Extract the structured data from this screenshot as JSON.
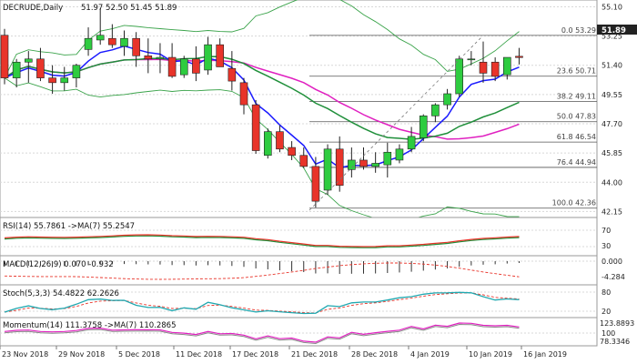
{
  "header": {
    "symbol": "DECRUDE,Daily",
    "ohlc": "51.97 52.50 51.45 51.89"
  },
  "last_price": "51.89",
  "fib_levels": [
    {
      "label": "0.0 53.29",
      "value": 53.29
    },
    {
      "label": "23.6 50.71",
      "value": 50.71
    },
    {
      "label": "38.2 49.11",
      "value": 49.11
    },
    {
      "label": "50.0 47.83",
      "value": 47.83
    },
    {
      "label": "61.8 46.54",
      "value": 46.54
    },
    {
      "label": "76.4 44.94",
      "value": 44.94
    },
    {
      "label": "100.0 42.36",
      "value": 42.36
    }
  ],
  "x_labels": [
    "23 Nov 2018",
    "29 Nov 2018",
    "5 Dec 2018",
    "11 Dec 2018",
    "17 Dec 2018",
    "21 Dec 2018",
    "28 Dec 2018",
    "4 Jan 2019",
    "10 Jan 2019",
    "16 Jan 2019"
  ],
  "chart_data": [
    {
      "type": "candlestick",
      "title": "DECRUDE,Daily",
      "ylim": [
        42.0,
        55.3
      ],
      "y_ticks": [
        55.1,
        53.25,
        51.4,
        49.55,
        47.7,
        45.85,
        44.0,
        42.15
      ],
      "colors": {
        "up": "#2ecc40",
        "down": "#e8342a",
        "ma_fast": "#1a1aff",
        "ma_mid": "#e020c0",
        "ma_slow": "#1f8f3a",
        "bands": "#3aa34a"
      },
      "candles": [
        [
          53.3,
          53.7,
          50.2,
          50.6
        ],
        [
          50.6,
          51.8,
          50.0,
          51.6
        ],
        [
          51.6,
          52.3,
          50.3,
          51.8
        ],
        [
          51.8,
          52.5,
          50.4,
          50.6
        ],
        [
          50.6,
          51.4,
          49.6,
          50.3
        ],
        [
          50.3,
          51.3,
          49.8,
          50.6
        ],
        [
          50.6,
          51.5,
          50.0,
          51.4
        ],
        [
          52.4,
          53.8,
          52.0,
          53.1
        ],
        [
          53.0,
          55.0,
          52.7,
          53.3
        ],
        [
          53.1,
          54.0,
          52.5,
          52.7
        ],
        [
          52.6,
          53.6,
          52.0,
          53.1
        ],
        [
          53.1,
          53.5,
          51.3,
          52.0
        ],
        [
          52.0,
          53.1,
          50.9,
          51.8
        ],
        [
          51.8,
          52.8,
          50.9,
          51.9
        ],
        [
          51.9,
          52.8,
          50.6,
          50.7
        ],
        [
          50.8,
          52.0,
          50.6,
          51.8
        ],
        [
          51.8,
          52.6,
          50.4,
          50.9
        ],
        [
          51.1,
          53.2,
          50.8,
          52.7
        ],
        [
          52.7,
          53.1,
          51.3,
          51.3
        ],
        [
          51.2,
          52.3,
          49.8,
          50.4
        ],
        [
          50.3,
          50.6,
          48.3,
          48.9
        ],
        [
          48.9,
          49.2,
          45.8,
          46.0
        ],
        [
          45.7,
          47.4,
          45.5,
          47.2
        ],
        [
          47.2,
          47.6,
          45.9,
          46.1
        ],
        [
          46.2,
          46.6,
          45.4,
          45.7
        ],
        [
          45.7,
          46.2,
          44.9,
          45.0
        ],
        [
          45.0,
          45.6,
          42.4,
          42.8
        ],
        [
          43.5,
          46.4,
          43.2,
          46.1
        ],
        [
          46.1,
          46.9,
          43.4,
          43.8
        ],
        [
          44.8,
          46.2,
          44.3,
          45.4
        ],
        [
          45.4,
          46.2,
          44.8,
          45.0
        ],
        [
          45.0,
          45.9,
          44.6,
          45.2
        ],
        [
          45.1,
          46.5,
          44.3,
          45.9
        ],
        [
          45.4,
          46.4,
          45.2,
          46.1
        ],
        [
          46.1,
          47.5,
          45.9,
          46.9
        ],
        [
          46.8,
          48.3,
          46.6,
          48.2
        ],
        [
          48.2,
          49.0,
          47.8,
          48.9
        ],
        [
          48.9,
          49.9,
          48.6,
          49.6
        ],
        [
          49.6,
          52.0,
          49.4,
          51.8
        ],
        [
          51.8,
          52.3,
          51.4,
          51.8
        ],
        [
          51.6,
          52.9,
          50.3,
          50.9
        ],
        [
          51.6,
          51.9,
          50.4,
          50.7
        ],
        [
          50.8,
          51.9,
          50.5,
          51.9
        ],
        [
          51.97,
          52.5,
          51.45,
          51.89
        ]
      ]
    },
    {
      "type": "line",
      "title": "RSI(14) 55.7861 ->MA(7) 55.2547",
      "y_ticks": [
        "70",
        "30"
      ],
      "ylim": [
        0,
        100
      ]
    },
    {
      "type": "bar",
      "title": "MACD(12,26,9) 0.070 -0.932",
      "y_ticks": [
        "0.000",
        "-4.284"
      ]
    },
    {
      "type": "line",
      "title": "Stoch(5,3,3) 54.4822 62.2626",
      "y_ticks": [
        "80",
        "20"
      ],
      "ylim": [
        0,
        100
      ]
    },
    {
      "type": "line",
      "title": "Momentum(14) 111.3758 ->MA(7) 110.2865",
      "y_ticks": [
        "123.8893",
        "100",
        "78.3346"
      ]
    }
  ]
}
